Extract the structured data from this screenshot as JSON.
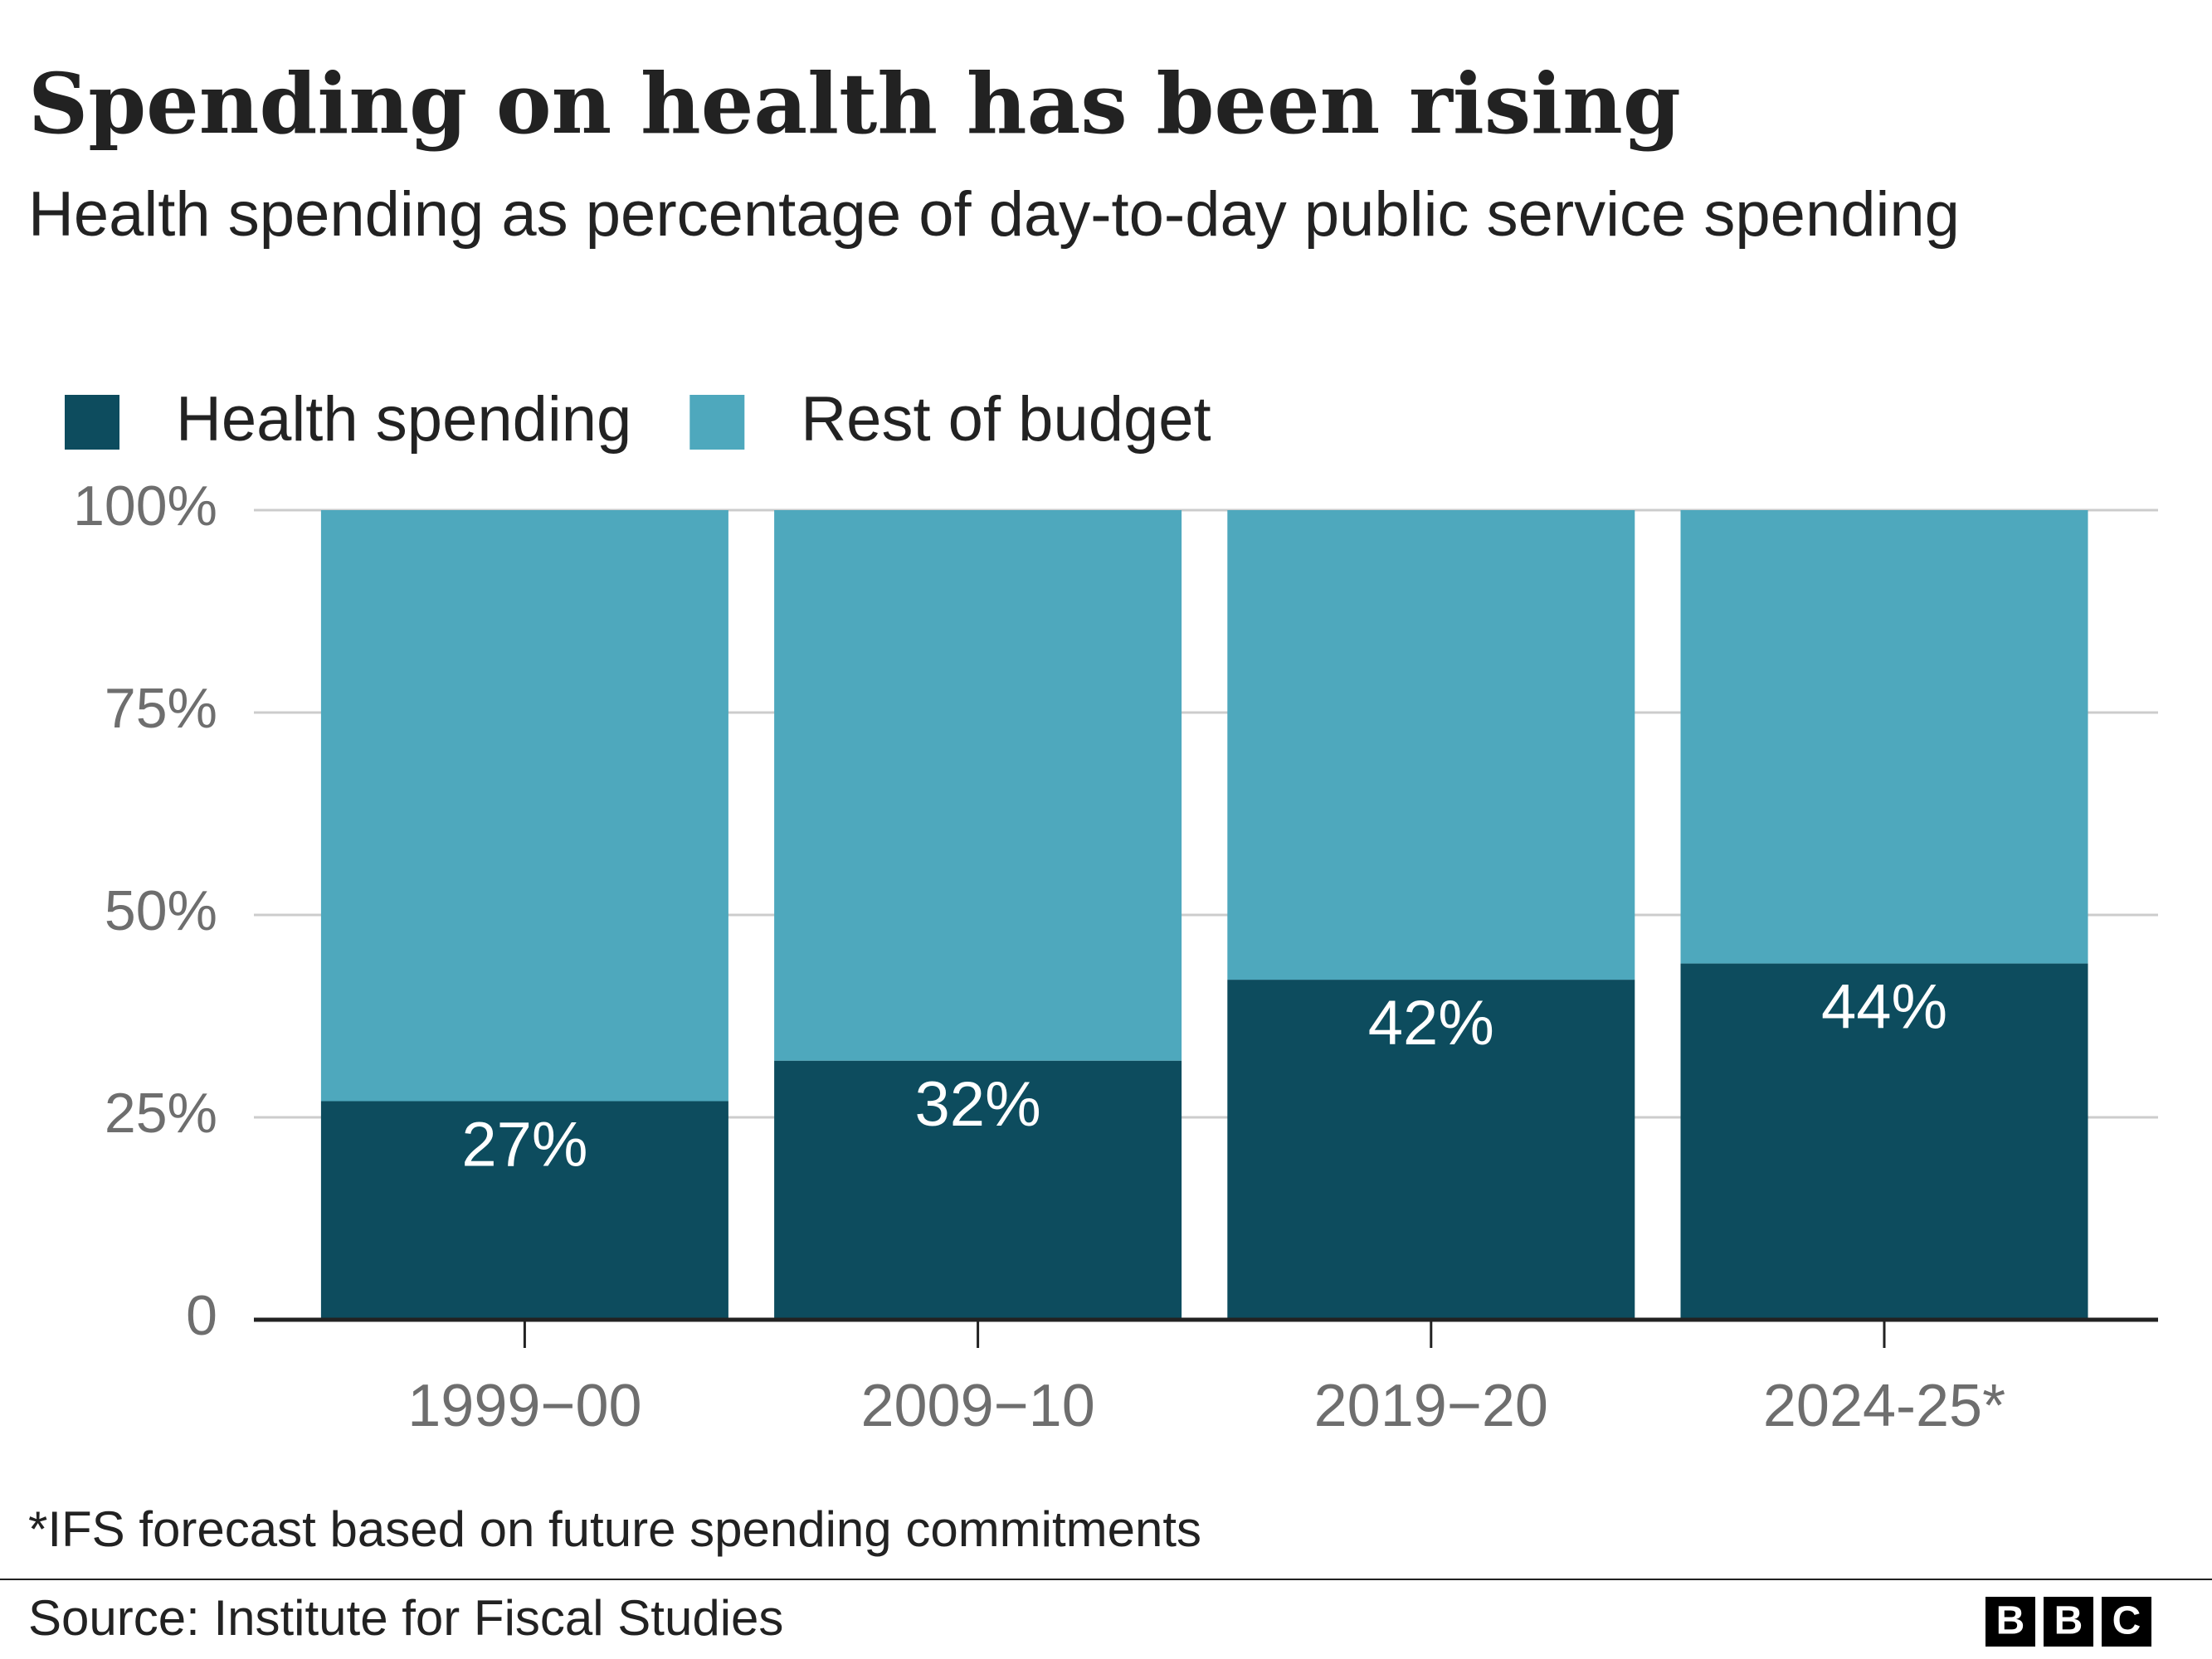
{
  "chart_data": {
    "type": "stacked_bar",
    "title": "Spending on health has been rising",
    "subtitle": "Health spending as percentage of day-to-day public service spending",
    "categories": [
      "1999−00",
      "2009−10",
      "2019−20",
      "2024-25*"
    ],
    "series": [
      {
        "name": "Health spending",
        "color": "#0d4c5e",
        "values": [
          27,
          32,
          42,
          44
        ],
        "value_labels": [
          "27%",
          "32%",
          "42%",
          "44%"
        ]
      },
      {
        "name": "Rest of budget",
        "color": "#4ea8bd",
        "values": [
          73,
          68,
          58,
          56
        ]
      }
    ],
    "ylim": [
      0,
      100
    ],
    "yticks": [
      0,
      {
        "value": 25,
        "label": "25%"
      },
      {
        "value": 50,
        "label": "50%"
      },
      {
        "value": 75,
        "label": "75%"
      },
      {
        "value": 100,
        "label": "100%"
      }
    ],
    "grid": true,
    "legend": "top-left",
    "note": "*IFS forecast based on future spending commitments",
    "source": "Source: Institute for Fiscal Studies",
    "logo": [
      "B",
      "B",
      "C"
    ]
  }
}
